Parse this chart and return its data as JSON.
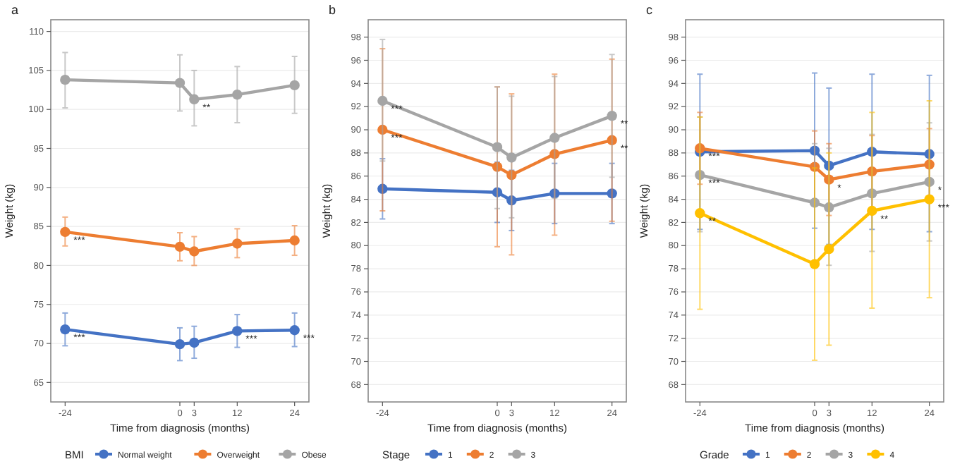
{
  "chart_data": [
    {
      "type": "line",
      "title": "a",
      "xlabel": "Time from diagnosis (months)",
      "ylabel": "Weight (kg)",
      "legend_title": "BMI",
      "legend": "bottom",
      "grid": "y",
      "marker": "circle",
      "line_style": "solid",
      "x": [
        -24,
        0,
        3,
        12,
        24
      ],
      "xlim": [
        -27,
        27
      ],
      "xticks": [
        -24,
        0,
        3,
        12,
        24
      ],
      "ylim": [
        62.5,
        111.5
      ],
      "yticks": [
        65,
        70,
        75,
        80,
        85,
        90,
        95,
        100,
        105,
        110
      ],
      "series": [
        {
          "name": "Normal weight",
          "color": "#4472c4",
          "values": [
            71.8,
            69.9,
            70.1,
            71.6,
            71.7
          ],
          "errors": [
            [
              69.7,
              73.9
            ],
            [
              67.8,
              72
            ],
            [
              68.1,
              72.2
            ],
            [
              69.5,
              73.7
            ],
            [
              69.6,
              73.9
            ]
          ]
        },
        {
          "name": "Overweight",
          "color": "#ed7d31",
          "values": [
            84.3,
            82.4,
            81.8,
            82.8,
            83.2
          ],
          "errors": [
            [
              82.5,
              86.2
            ],
            [
              80.6,
              84.2
            ],
            [
              80,
              83.7
            ],
            [
              81,
              84.7
            ],
            [
              81.3,
              85.1
            ]
          ]
        },
        {
          "name": "Obese",
          "color": "#a5a5a5",
          "values": [
            103.8,
            103.4,
            101.3,
            101.9,
            103.1
          ],
          "errors": [
            [
              100.2,
              107.3
            ],
            [
              99.8,
              107
            ],
            [
              97.9,
              105
            ],
            [
              98.3,
              105.5
            ],
            [
              99.5,
              106.8
            ]
          ]
        }
      ],
      "annotations": [
        {
          "text": "**",
          "x": 3,
          "y": 101.3
        },
        {
          "text": "***",
          "x": -24,
          "y": 84.3
        },
        {
          "text": "***",
          "x": -24,
          "y": 71.8
        },
        {
          "text": "***",
          "x": 12,
          "y": 71.6
        },
        {
          "text": "***",
          "x": 24,
          "y": 71.7
        }
      ]
    },
    {
      "type": "line",
      "title": "b",
      "xlabel": "Time from diagnosis (months)",
      "ylabel": "Weight (kg)",
      "legend_title": "Stage",
      "legend": "bottom",
      "grid": "y",
      "marker": "circle",
      "line_style": "solid",
      "x": [
        -24,
        0,
        3,
        12,
        24
      ],
      "xlim": [
        -27,
        27
      ],
      "xticks": [
        -24,
        0,
        3,
        12,
        24
      ],
      "ylim": [
        66.5,
        99.5
      ],
      "yticks": [
        68,
        70,
        72,
        74,
        76,
        78,
        80,
        82,
        84,
        86,
        88,
        90,
        92,
        94,
        96,
        98
      ],
      "series": [
        {
          "name": "1",
          "color": "#4472c4",
          "values": [
            84.9,
            84.6,
            83.9,
            84.5,
            84.5
          ],
          "errors": [
            [
              82.3,
              87.5
            ],
            [
              82,
              87.2
            ],
            [
              81.3,
              86.5
            ],
            [
              81.9,
              87.1
            ],
            [
              81.9,
              87.1
            ]
          ]
        },
        {
          "name": "2",
          "color": "#ed7d31",
          "values": [
            90,
            86.8,
            86.1,
            87.9,
            89.1
          ],
          "errors": [
            [
              83,
              97
            ],
            [
              79.9,
              93.7
            ],
            [
              79.2,
              93.1
            ],
            [
              80.9,
              94.8
            ],
            [
              82.1,
              96.1
            ]
          ]
        },
        {
          "name": "3",
          "color": "#a5a5a5",
          "values": [
            92.5,
            88.5,
            87.6,
            89.3,
            91.2
          ],
          "errors": [
            [
              87.3,
              97.8
            ],
            [
              83.2,
              93.7
            ],
            [
              82.4,
              92.9
            ],
            [
              84.1,
              94.6
            ],
            [
              85.9,
              96.5
            ]
          ]
        }
      ],
      "annotations": [
        {
          "text": "***",
          "x": -24,
          "y": 92.5
        },
        {
          "text": "***",
          "x": -24,
          "y": 90
        },
        {
          "text": "**",
          "x": 24,
          "y": 91.2
        },
        {
          "text": "**",
          "x": 24,
          "y": 89.1
        }
      ]
    },
    {
      "type": "line",
      "title": "c",
      "xlabel": "Time from diagnosis (months)",
      "ylabel": "Weight (kg)",
      "legend_title": "Grade",
      "legend": "bottom",
      "grid": "y",
      "marker": "circle",
      "line_style": "solid",
      "x": [
        -24,
        0,
        3,
        12,
        24
      ],
      "xlim": [
        -27,
        27
      ],
      "xticks": [
        -24,
        0,
        3,
        12,
        24
      ],
      "ylim": [
        66.5,
        99.5
      ],
      "yticks": [
        68,
        70,
        72,
        74,
        76,
        78,
        80,
        82,
        84,
        86,
        88,
        90,
        92,
        94,
        96,
        98
      ],
      "series": [
        {
          "name": "1",
          "color": "#4472c4",
          "values": [
            88.1,
            88.2,
            86.9,
            88.1,
            87.9
          ],
          "errors": [
            [
              81.4,
              94.8
            ],
            [
              81.5,
              94.9
            ],
            [
              80.1,
              93.6
            ],
            [
              81.4,
              94.8
            ],
            [
              81.2,
              94.7
            ]
          ]
        },
        {
          "name": "2",
          "color": "#ed7d31",
          "values": [
            88.4,
            86.8,
            85.7,
            86.4,
            87
          ],
          "errors": [
            [
              85.3,
              91.5
            ],
            [
              83.7,
              89.9
            ],
            [
              82.6,
              88.8
            ],
            [
              83.3,
              89.5
            ],
            [
              83.9,
              90.1
            ]
          ]
        },
        {
          "name": "3",
          "color": "#a5a5a5",
          "values": [
            86.1,
            83.7,
            83.3,
            84.5,
            85.5
          ],
          "errors": [
            [
              81.2,
              91.1
            ],
            [
              78.7,
              88.8
            ],
            [
              78.3,
              88.4
            ],
            [
              79.5,
              89.6
            ],
            [
              80.4,
              90.6
            ]
          ]
        },
        {
          "name": "4",
          "color": "#ffc000",
          "values": [
            82.8,
            78.4,
            79.7,
            83,
            84
          ],
          "errors": [
            [
              74.5,
              91.1
            ],
            [
              70.1,
              86.7
            ],
            [
              71.4,
              88
            ],
            [
              74.6,
              91.5
            ],
            [
              75.5,
              92.5
            ]
          ]
        }
      ],
      "annotations": [
        {
          "text": "***",
          "x": -24,
          "y": 88.4
        },
        {
          "text": "***",
          "x": -24,
          "y": 86.1
        },
        {
          "text": "**",
          "x": -24,
          "y": 82.8
        },
        {
          "text": "*",
          "x": 3,
          "y": 85.7
        },
        {
          "text": "**",
          "x": 12,
          "y": 83
        },
        {
          "text": "*",
          "x": 24,
          "y": 85.5
        },
        {
          "text": "***",
          "x": 24,
          "y": 84
        }
      ]
    }
  ]
}
